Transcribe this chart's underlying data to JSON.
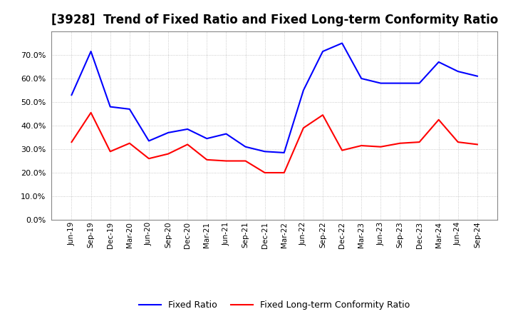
{
  "title": "[3928]  Trend of Fixed Ratio and Fixed Long-term Conformity Ratio",
  "x_labels": [
    "Jun-19",
    "Sep-19",
    "Dec-19",
    "Mar-20",
    "Jun-20",
    "Sep-20",
    "Dec-20",
    "Mar-21",
    "Jun-21",
    "Sep-21",
    "Dec-21",
    "Mar-22",
    "Jun-22",
    "Sep-22",
    "Dec-22",
    "Mar-23",
    "Jun-23",
    "Sep-23",
    "Dec-23",
    "Mar-24",
    "Jun-24",
    "Sep-24"
  ],
  "fixed_ratio": [
    53.0,
    71.5,
    48.0,
    47.0,
    33.5,
    37.0,
    38.5,
    34.5,
    36.5,
    31.0,
    29.0,
    28.5,
    55.0,
    71.5,
    75.0,
    60.0,
    58.0,
    58.0,
    58.0,
    67.0,
    63.0,
    61.0
  ],
  "fixed_lt_ratio": [
    33.0,
    45.5,
    29.0,
    32.5,
    26.0,
    28.0,
    32.0,
    25.5,
    25.0,
    25.0,
    20.0,
    20.0,
    39.0,
    44.5,
    29.5,
    31.5,
    31.0,
    32.5,
    33.0,
    42.5,
    33.0,
    32.0
  ],
  "fixed_ratio_color": "#0000FF",
  "fixed_lt_ratio_color": "#FF0000",
  "ylim": [
    0,
    80
  ],
  "yticks": [
    0,
    10,
    20,
    30,
    40,
    50,
    60,
    70
  ],
  "background_color": "#FFFFFF",
  "plot_bg_color": "#FFFFFF",
  "grid_color": "#BBBBBB",
  "title_fontsize": 12,
  "legend_fixed": "Fixed Ratio",
  "legend_fixed_lt": "Fixed Long-term Conformity Ratio"
}
